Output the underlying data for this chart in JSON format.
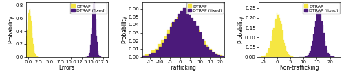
{
  "fig_width": 5.0,
  "fig_height": 1.06,
  "dpi": 100,
  "subplots": [
    {
      "xlabel": "Errors",
      "ylabel": "Probability",
      "xlim": [
        -0.5,
        18.5
      ],
      "ylim": [
        0,
        0.85
      ],
      "yticks": [
        0.0,
        0.2,
        0.4,
        0.6,
        0.8
      ],
      "xticks": [
        0.0,
        2.5,
        5.0,
        7.5,
        10.0,
        12.5,
        15.0,
        17.5
      ],
      "xtick_labels": [
        "0.0",
        "2.5",
        "5.0",
        "7.5",
        "10.0",
        "12.5",
        "15.0",
        "17.5"
      ],
      "series": [
        {
          "label": "DTRAP",
          "color": "#f5e642",
          "mean": 0.4,
          "std": 0.55,
          "n_samples": 10000
        },
        {
          "label": "DTRAP (fixed)",
          "color": "#4b1a7a",
          "mean": 15.3,
          "std": 0.45,
          "n_samples": 10000
        }
      ],
      "bins": 35,
      "density": true
    },
    {
      "xlabel": "Trafficking",
      "ylabel": "Probability",
      "xlim": [
        -19,
        22
      ],
      "ylim": [
        0,
        0.068
      ],
      "yticks": [
        0.0,
        0.01,
        0.02,
        0.03,
        0.04,
        0.05,
        0.06
      ],
      "xticks": [
        -15,
        -10,
        -5,
        0,
        5,
        10,
        15,
        20
      ],
      "xtick_labels": [
        "-15",
        "-10",
        "-5",
        "0",
        "5",
        "10",
        "15",
        "20"
      ],
      "series": [
        {
          "label": "DTRAP",
          "color": "#f5e642",
          "mean": 1.5,
          "std": 7.5,
          "n_samples": 10000
        },
        {
          "label": "DTRAP (fixed)",
          "color": "#4b1a7a",
          "mean": 2.0,
          "std": 6.8,
          "n_samples": 10000
        }
      ],
      "bins": 40,
      "density": true
    },
    {
      "xlabel": "Non-trafficking",
      "ylabel": "Probability",
      "xlim": [
        -7,
        24
      ],
      "ylim": [
        0,
        0.28
      ],
      "yticks": [
        0.0,
        0.05,
        0.1,
        0.15,
        0.2,
        0.25
      ],
      "xticks": [
        -5,
        0,
        5,
        10,
        15,
        20
      ],
      "xtick_labels": [
        "-5",
        "0",
        "5",
        "10",
        "15",
        "20"
      ],
      "series": [
        {
          "label": "DTRAP",
          "color": "#f5e642",
          "mean": 0.2,
          "std": 1.8,
          "n_samples": 10000
        },
        {
          "label": "DTRAP (fixed)",
          "color": "#4b1a7a",
          "mean": 15.8,
          "std": 1.6,
          "n_samples": 10000
        }
      ],
      "bins": 35,
      "density": true
    }
  ],
  "legend_labels": [
    "DTRAP",
    "DTRAP (fixed)"
  ],
  "legend_colors": [
    "#f5e642",
    "#4b1a7a"
  ],
  "tick_fontsize": 5,
  "label_fontsize": 5.5,
  "legend_fontsize": 4.5
}
